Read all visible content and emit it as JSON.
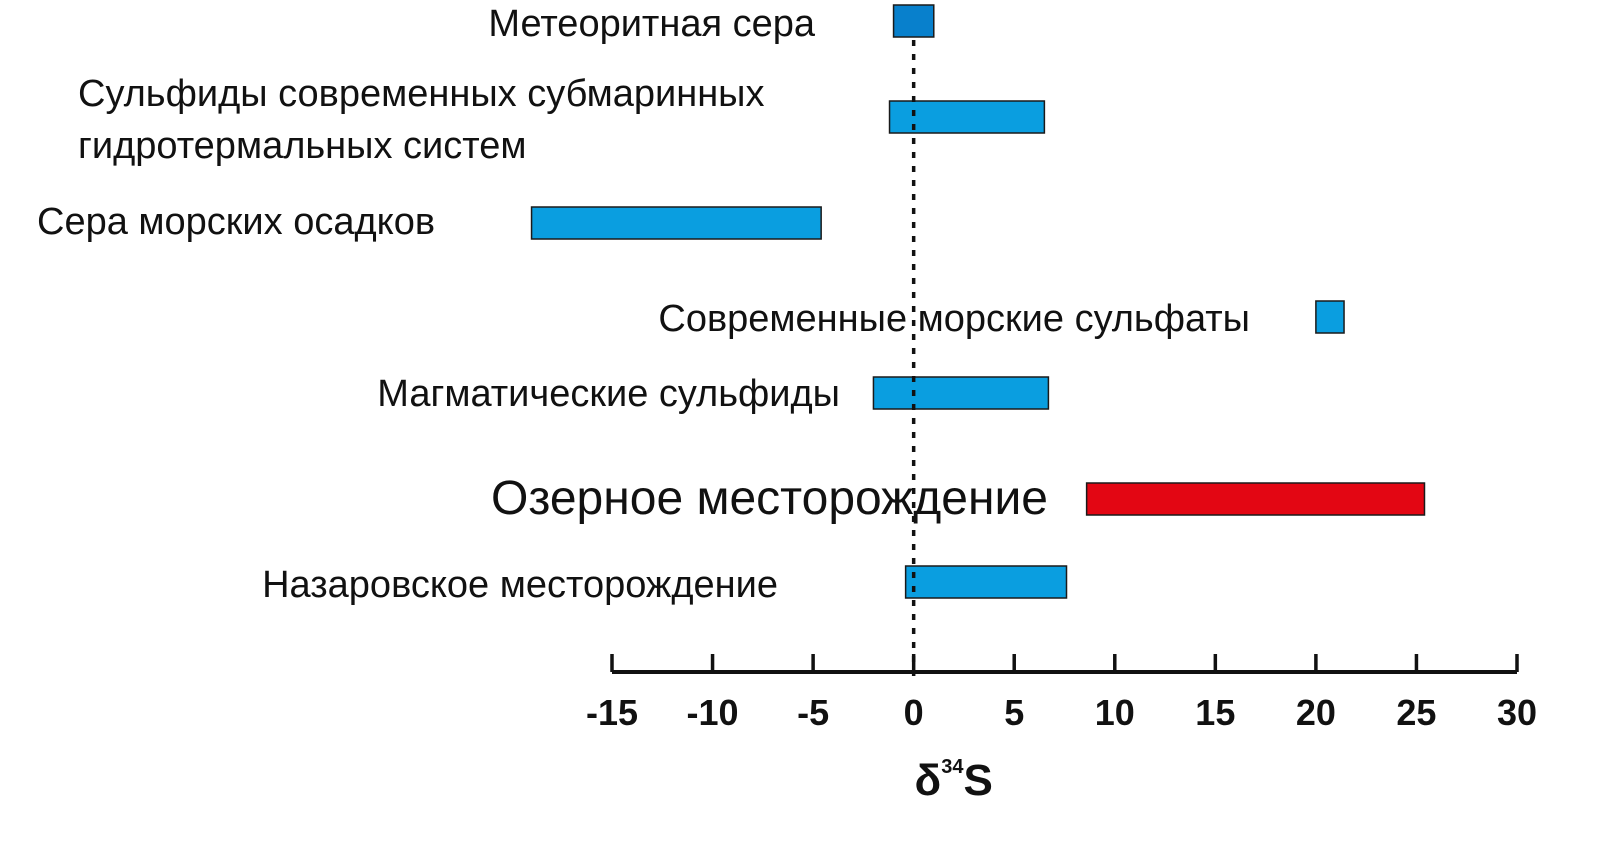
{
  "chart_data": {
    "type": "bar",
    "orientation": "horizontal-range",
    "xlabel": {
      "main": "δ",
      "sup": "34",
      "tail": "S"
    },
    "xlim": [
      -15,
      30
    ],
    "xticks": [
      -15,
      -10,
      -5,
      0,
      5,
      10,
      15,
      20,
      25,
      30
    ],
    "reference_line": {
      "x": 0,
      "style": "dotted"
    },
    "colors": {
      "default": "#0a9ee0",
      "meteorite": "#0880cc",
      "highlight": "#e30613",
      "highlight_text": "#ff0000"
    },
    "series": [
      {
        "name": "Метеоритная сера",
        "lines": [
          "Метеоритная сера"
        ],
        "min": -1,
        "max": 1,
        "color": "#0880cc"
      },
      {
        "name": "Сульфиды современных субмаринных гидротермальных систем",
        "lines": [
          "Сульфиды современных субмаринных",
          "гидротермальных систем"
        ],
        "min": -1.2,
        "max": 6.5,
        "color": "#0a9ee0"
      },
      {
        "name": "Сера морских осадков",
        "lines": [
          "Сера морских осадков"
        ],
        "min": -19,
        "max": -4.6,
        "color": "#0a9ee0"
      },
      {
        "name": "Современные морские сульфаты",
        "lines": [
          "Современные морские сульфаты"
        ],
        "min": 20,
        "max": 21.4,
        "color": "#0a9ee0"
      },
      {
        "name": "Магматические сульфиды",
        "lines": [
          "Магматические сульфиды"
        ],
        "min": -2,
        "max": 6.7,
        "color": "#0a9ee0"
      },
      {
        "name": "Озерное месторождение",
        "lines": [
          "Озерное месторождение"
        ],
        "min": 8.6,
        "max": 25.4,
        "color": "#e30613",
        "highlight": true
      },
      {
        "name": "Назаровское месторождение",
        "lines": [
          "Назаровское месторождение"
        ],
        "min": -0.4,
        "max": 7.6,
        "color": "#0a9ee0"
      }
    ]
  }
}
